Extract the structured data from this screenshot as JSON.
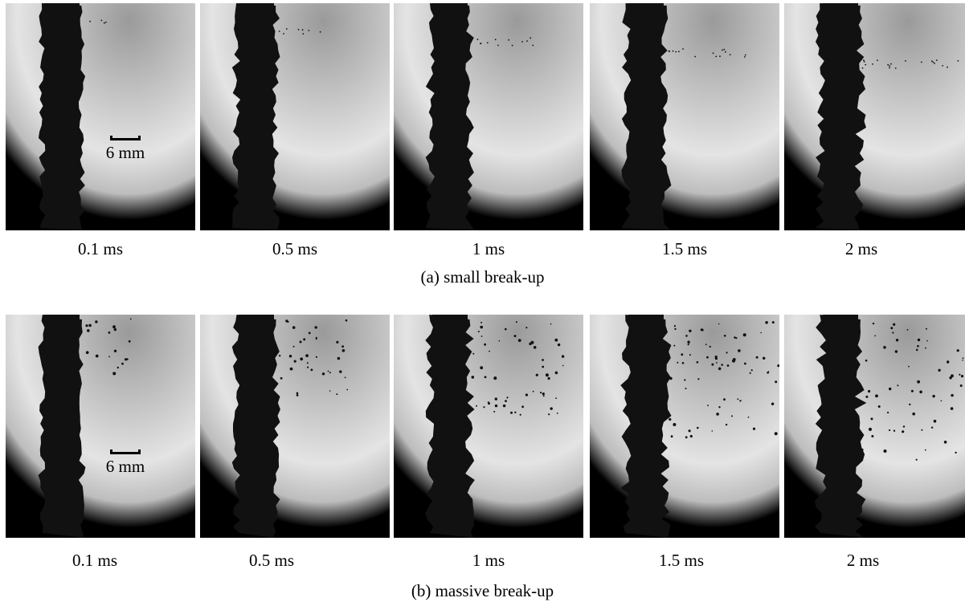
{
  "figure": {
    "rows": [
      {
        "caption": "(a) small break-up",
        "scale_label": "6 mm",
        "frames": [
          {
            "time": "0.1 ms"
          },
          {
            "time": "0.5 ms"
          },
          {
            "time": "1 ms"
          },
          {
            "time": "1.5 ms"
          },
          {
            "time": "2 ms"
          }
        ]
      },
      {
        "caption": "(b) massive break-up",
        "scale_label": "6 mm",
        "frames": [
          {
            "time": "0.1 ms"
          },
          {
            "time": "0.5 ms"
          },
          {
            "time": "1 ms"
          },
          {
            "time": "1.5 ms"
          },
          {
            "time": "2 ms"
          }
        ]
      }
    ],
    "colors": {
      "background_light": "#e4e4e4",
      "background_mid": "#9a9a9a",
      "jet": "#111111",
      "vignette": "#000000"
    }
  }
}
